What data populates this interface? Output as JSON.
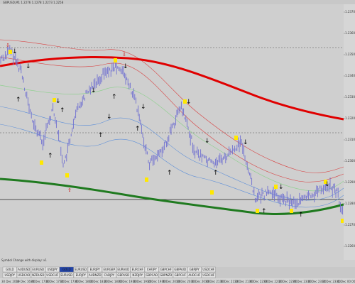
{
  "header": {
    "symbol_info": "GBPUSD,M1  1.2276 1.2278 1.2273 1.2258"
  },
  "indicator_bar": {
    "label": "Symbol Change with display: x1"
  },
  "price_axis": {
    "labels": [
      "1.2370",
      "1.2360",
      "1.2350",
      "1.2340",
      "1.2330",
      "1.2320",
      "1.2310",
      "1.2300",
      "1.2290",
      "1.2280",
      "1.2270",
      "1.2260"
    ]
  },
  "symbol_tabs": {
    "row1": [
      "GOLD",
      "AUDUSD",
      "EURUSD",
      "USDJPY",
      "GOLD",
      "EURUSD",
      "EURJPY",
      "EURGBP",
      "EURAUD",
      "EURCHF",
      "CHFJPY",
      "GBPCHF",
      "GBPAUD",
      "GBPJPY",
      "USDCHF"
    ],
    "row2": [
      "USDJPY",
      "USDCAD",
      "NZDUSD",
      "USDCHF",
      "EURUSD",
      "EURJPY",
      "AUDNZD",
      "CADJPY",
      "GBPUSD",
      "NZDJPY",
      "GBPCAD",
      "GBPNZD",
      "GBPCHF",
      "AUDCHF",
      "USDCHF"
    ],
    "active_index": 4
  },
  "time_axis": {
    "labels": [
      "30 Dec 2019",
      "30 Dec 16:40",
      "30 Dec 17:00",
      "30 Dec 17:20",
      "30 Dec 17:40",
      "30 Dec 18:00",
      "30 Dec 18:20",
      "30 Dec 18:40",
      "30 Dec 19:00",
      "30 Dec 19:20",
      "30 Dec 19:40",
      "30 Dec 20:00",
      "30 Dec 20:20",
      "30 Dec 20:40",
      "30 Dec 21:00",
      "30 Dec 21:20",
      "30 Dec 21:40",
      "30 Dec 22:00",
      "30 Dec 22:20",
      "30 Dec 22:40",
      "30 Dec 23:00",
      "30 Dec 23:20",
      "30 Dec 23:40",
      "31 Dec 00:00"
    ]
  },
  "colors": {
    "background": "#c8c8c8",
    "red_ma": "#e00000",
    "green_ma": "#1f7a1f",
    "envelope_red": "#d84040",
    "envelope_blue": "#5f90d8",
    "envelope_green": "#8fd08f",
    "candle": "#7070d0",
    "marker_yellow": "#ffe800",
    "active_tab": "#2244aa"
  }
}
